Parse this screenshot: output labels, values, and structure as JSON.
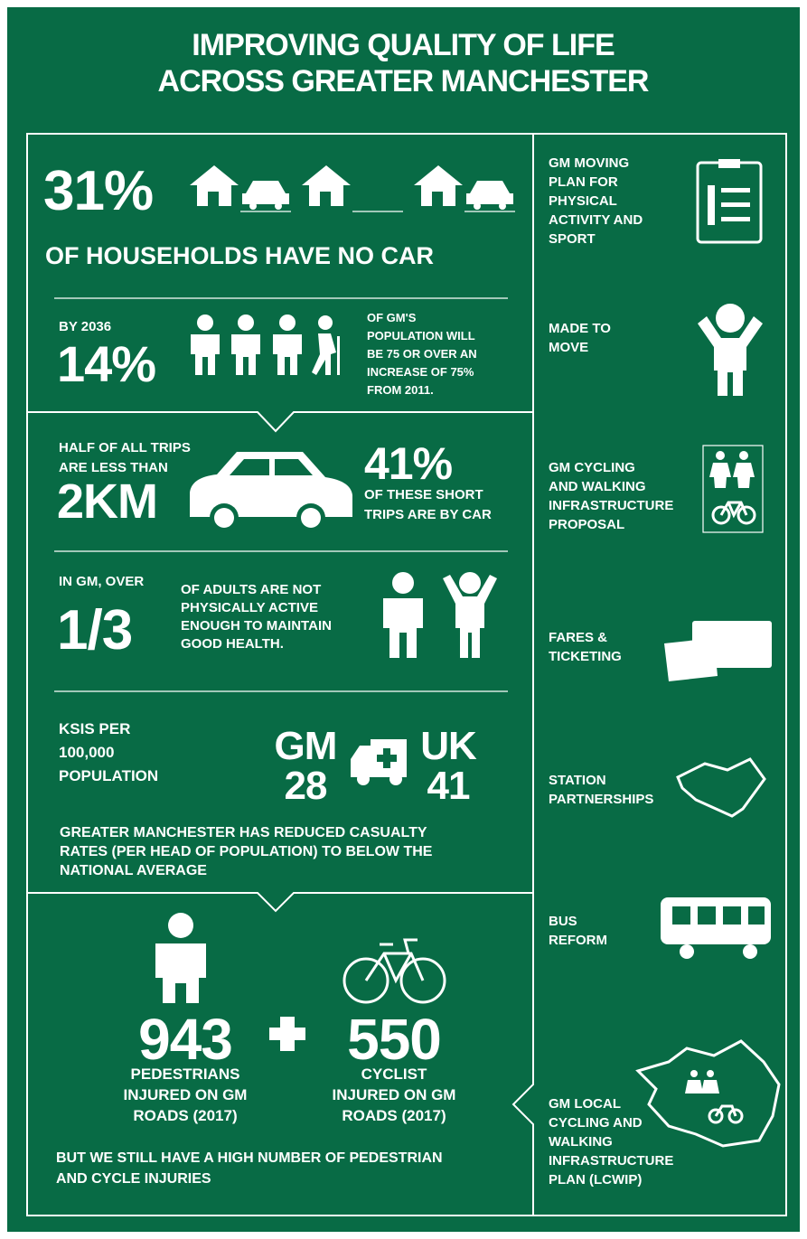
{
  "title": {
    "lines": [
      "IMPROVING QUALITY OF LIFE",
      "ACROSS GREATER MANCHESTER"
    ]
  },
  "households": {
    "value": "31%",
    "text": "OF HOUSEHOLDS HAVE NO CAR"
  },
  "population": {
    "intro": "BY 2036",
    "value": "14%",
    "lines": [
      "OF GM'S",
      "POPULATION WILL",
      "BE 75 OR OVER  AN",
      "INCREASE OF 75%",
      "FROM 2011."
    ]
  },
  "trips": {
    "intro": [
      "HALF OF ALL TRIPS",
      "ARE LESS THAN"
    ],
    "value": "2KM",
    "share": "41%",
    "lines": [
      "OF THESE SHORT",
      "TRIPS ARE BY CAR"
    ]
  },
  "activity": {
    "intro": "IN GM, OVER",
    "value": "1/3",
    "lines": [
      "OF ADULTS ARE NOT",
      "PHYSICALLY ACTIVE",
      "ENOUGH TO MAINTAIN",
      "GOOD HEALTH."
    ]
  },
  "ksi": {
    "label": [
      "KSIS PER",
      "100,000",
      "POPULATION"
    ],
    "gm": {
      "name": "GM",
      "value": "28"
    },
    "uk": {
      "name": "UK",
      "value": "41"
    },
    "note": [
      "GREATER MANCHESTER HAS REDUCED CASUALTY",
      "RATES (PER HEAD OF POPULATION) TO BELOW THE",
      "NATIONAL AVERAGE"
    ]
  },
  "injuries": {
    "pedestrians": {
      "value": "943",
      "lines": [
        "PEDESTRIANS",
        "INJURED ON GM",
        "ROADS (2017)"
      ]
    },
    "cyclists": {
      "value": "550",
      "lines": [
        "CYCLIST",
        "INJURED ON GM",
        "ROADS (2017)"
      ]
    },
    "note": [
      "BUT WE STILL HAVE A HIGH NUMBER OF PEDESTRIAN",
      "AND CYCLE INJURIES"
    ]
  },
  "sidebar": [
    {
      "lines": [
        "GM MOVING",
        "PLAN FOR",
        "PHYSICAL",
        "ACTIVITY AND",
        "SPORT"
      ]
    },
    {
      "lines": [
        "MADE TO",
        "MOVE"
      ]
    },
    {
      "lines": [
        "GM CYCLING",
        "AND WALKING",
        "INFRASTRUCTURE",
        "PROPOSAL"
      ]
    },
    {
      "lines": [
        "FARES &",
        "TICKETING"
      ]
    },
    {
      "lines": [
        "STATION",
        "PARTNERSHIPS"
      ]
    },
    {
      "lines": [
        "BUS",
        "REFORM"
      ]
    },
    {
      "lines": [
        "GM LOCAL",
        "CYCLING AND",
        "WALKING",
        "INFRASTRUCTURE",
        "PLAN (LCWIP)"
      ]
    }
  ]
}
